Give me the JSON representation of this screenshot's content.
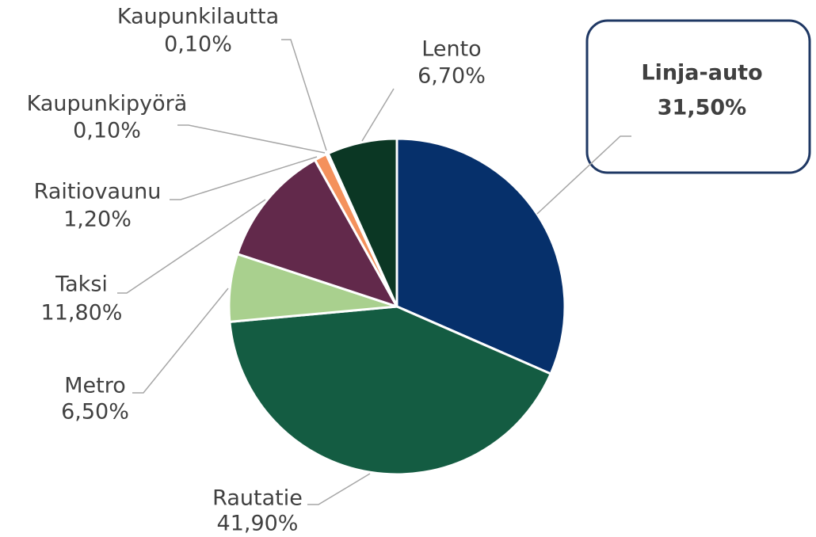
{
  "chart_data": {
    "type": "pie",
    "categories": [
      "Linja-auto",
      "Rautatie",
      "Metro",
      "Taksi",
      "Raitiovaunu",
      "Kaupunkipyörä",
      "Kaupunkilautta",
      "Lento"
    ],
    "values": [
      31.5,
      41.9,
      6.5,
      11.8,
      1.2,
      0.1,
      0.1,
      6.7
    ],
    "value_labels": [
      "31,50%",
      "41,90%",
      "6,50%",
      "11,80%",
      "1,20%",
      "0,10%",
      "0,10%",
      "6,70%"
    ],
    "colors": [
      "#06306b",
      "#145c42",
      "#a9d08e",
      "#62294b",
      "#f4915c",
      "#d9d9d9",
      "#bfbfbf",
      "#0b3724"
    ]
  }
}
